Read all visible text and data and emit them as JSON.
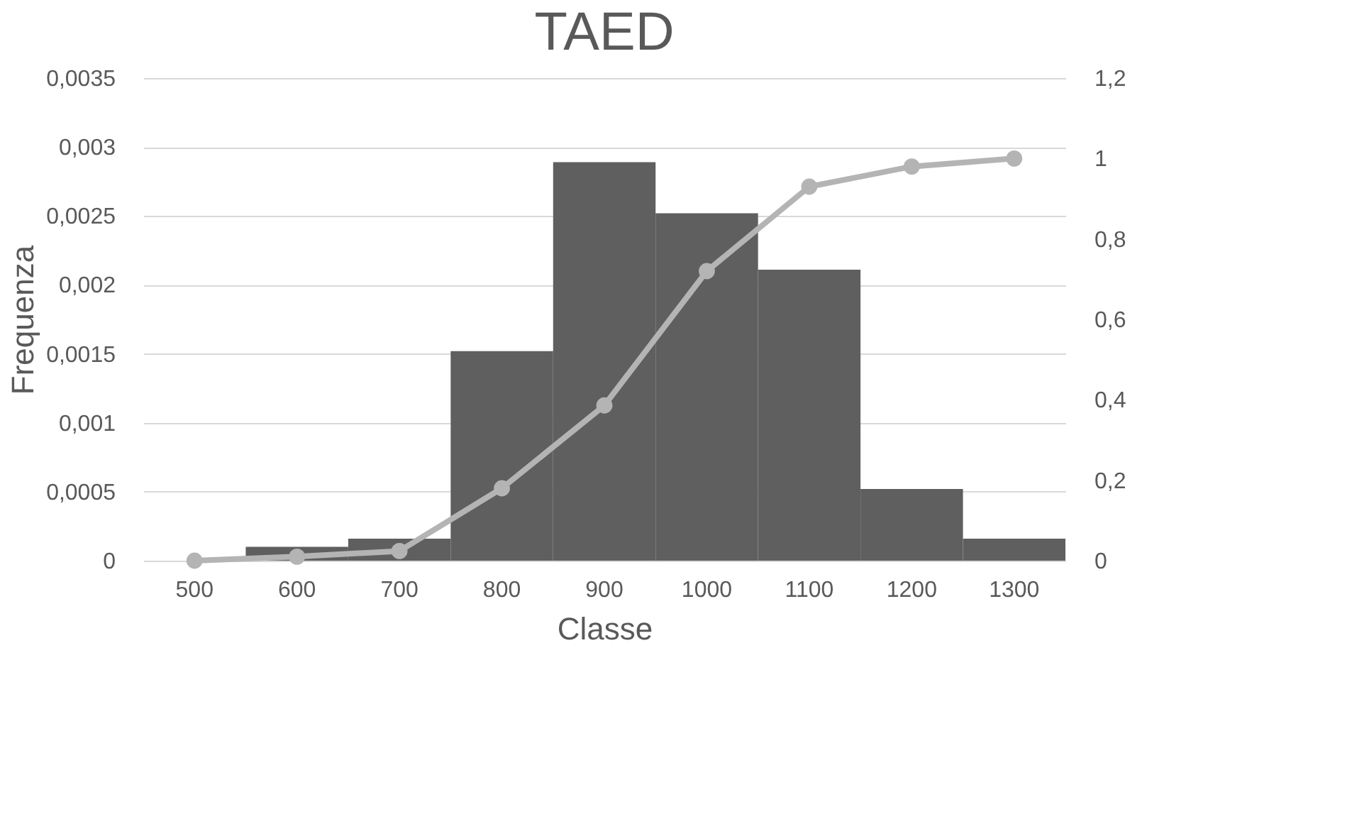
{
  "chart_data": {
    "type": "bar",
    "title": "TAED",
    "xlabel": "Classe",
    "ylabel": "Frequenza",
    "categories": [
      "500",
      "600",
      "700",
      "800",
      "900",
      "1000",
      "1100",
      "1200",
      "1300"
    ],
    "series": [
      {
        "color": "#5f5f5f",
        "values": [
          0,
          0.0001,
          0.00016,
          0.00152,
          0.00289,
          0.00252,
          0.00211,
          0.00052,
          0.00016
        ]
      },
      {
        "type": "line",
        "axis": "y2",
        "color": "#b4b4b4",
        "values": [
          0,
          0.01,
          0.024,
          0.18,
          0.386,
          0.72,
          0.93,
          0.98,
          1.0
        ]
      }
    ],
    "ylim": [
      0,
      0.0035
    ],
    "yticks": [
      0,
      {
        "value": 0.0005,
        "label": "0,0005"
      },
      {
        "value": 0.001,
        "label": "0,001"
      },
      {
        "value": 0.0015,
        "label": "0,0015"
      },
      {
        "value": 0.002,
        "label": "0,002"
      },
      {
        "value": 0.0025,
        "label": "0,0025"
      },
      {
        "value": 0.003,
        "label": "0,003"
      },
      {
        "value": 0.0035,
        "label": "0,0035"
      }
    ],
    "y2lim": [
      0,
      1.2
    ],
    "y2ticks": [
      0,
      {
        "value": 0.2,
        "label": "0,2"
      },
      {
        "value": 0.4,
        "label": "0,4"
      },
      {
        "value": 0.6,
        "label": "0,6"
      },
      {
        "value": 0.8,
        "label": "0,8"
      },
      1,
      {
        "value": 1.2,
        "label": "1,2"
      }
    ],
    "grid": "y",
    "marker": "circle",
    "line_style": "solid",
    "legend": false
  }
}
